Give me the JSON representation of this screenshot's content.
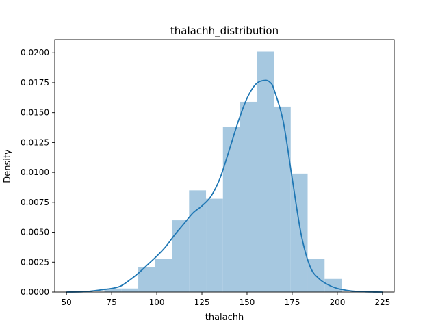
{
  "chart_data": {
    "type": "bar",
    "title": "thalachh_distribution",
    "xlabel": "thalachh",
    "ylabel": "Density",
    "xlim": [
      43.5,
      231.5
    ],
    "ylim": [
      0,
      0.0211
    ],
    "xticks": [
      50,
      75,
      100,
      125,
      150,
      175,
      200,
      225
    ],
    "xtick_labels": [
      "50",
      "75",
      "100",
      "125",
      "150",
      "175",
      "200",
      "225"
    ],
    "yticks": [
      0.0,
      0.0025,
      0.005,
      0.0075,
      0.01,
      0.0125,
      0.015,
      0.0175,
      0.02
    ],
    "ytick_labels": [
      "0.0000",
      "0.0025",
      "0.0050",
      "0.0075",
      "0.0100",
      "0.0125",
      "0.0150",
      "0.0175",
      "0.0200"
    ],
    "grid": false,
    "histogram": {
      "bin_edges": [
        71,
        80.38,
        89.76,
        99.14,
        108.52,
        117.9,
        127.28,
        136.66,
        146.04,
        155.42,
        164.8,
        174.18,
        183.56,
        192.94,
        202.32
      ],
      "density": [
        0.0003,
        0.0003,
        0.0021,
        0.0028,
        0.006,
        0.0085,
        0.0078,
        0.0138,
        0.0159,
        0.0201,
        0.0155,
        0.0099,
        0.0028,
        0.0011
      ],
      "color": "#a6c8e0"
    },
    "kde": {
      "color": "#1f77b4",
      "x": [
        50,
        60,
        70,
        75,
        80,
        85,
        90,
        95,
        100,
        105,
        110,
        115,
        120,
        125,
        130,
        135,
        140,
        145,
        150,
        155,
        160,
        163,
        165,
        170,
        175,
        180,
        185,
        190,
        195,
        200,
        205,
        210,
        215,
        220,
        225
      ],
      "y": [
        0.0,
        3e-05,
        0.0002,
        0.0003,
        0.0005,
        0.001,
        0.0016,
        0.0023,
        0.003,
        0.0038,
        0.0048,
        0.0057,
        0.0066,
        0.0072,
        0.008,
        0.0095,
        0.0118,
        0.0142,
        0.0162,
        0.0174,
        0.0177,
        0.0175,
        0.0169,
        0.0143,
        0.0095,
        0.0048,
        0.0021,
        0.0011,
        0.0006,
        0.0003,
        0.00015,
        6e-05,
        2e-05,
        5e-06,
        0.0
      ]
    }
  }
}
